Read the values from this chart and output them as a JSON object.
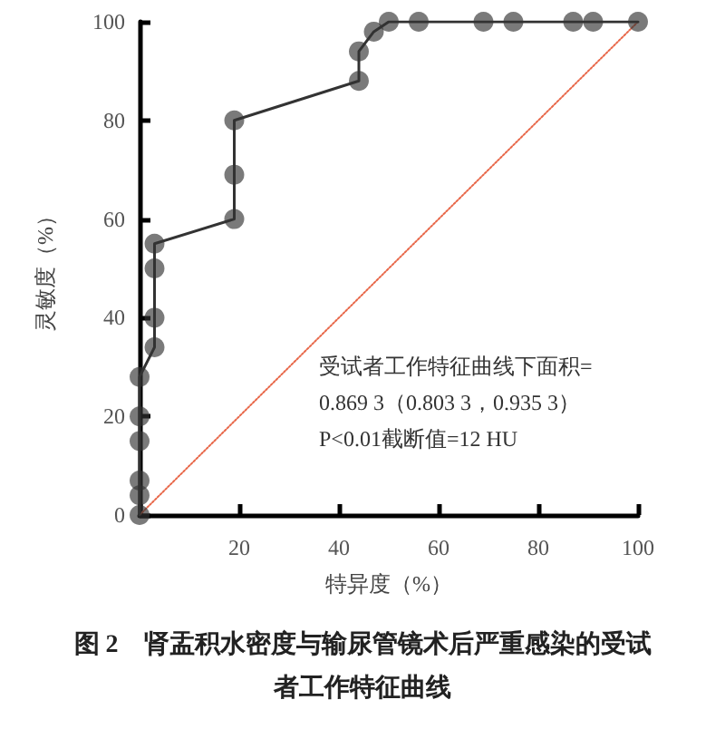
{
  "chart_data": {
    "type": "line",
    "title": "图 2　肾盂积水密度与输尿管镜术后严重感染的受试者工作特征曲线",
    "xlabel": "特异度（%）",
    "ylabel": "灵敏度（%）",
    "series": [
      {
        "color": "#333333",
        "marker": "circle",
        "x": [
          0,
          0,
          0,
          0,
          0,
          0,
          3,
          3,
          3,
          3,
          19,
          19,
          19,
          44,
          44,
          47,
          50,
          56,
          69,
          75,
          87,
          91,
          100
        ],
        "values": [
          0,
          4,
          7,
          15,
          20,
          28,
          34,
          40,
          50,
          55,
          60,
          69,
          80,
          88,
          94,
          98,
          100,
          100,
          100,
          100,
          100,
          100,
          100
        ]
      },
      {
        "type": "line",
        "color": "#e8684a",
        "line_style": "dotted",
        "marker": "none",
        "x": [
          0,
          100
        ],
        "values": [
          0,
          100
        ]
      }
    ],
    "annotations": [
      {
        "text": "受试者工作特征曲线下面积=\n0.869 3（0.803 3，0.935 3）\nP<0.01截断值=12 HU"
      }
    ],
    "xlim": [
      0,
      100
    ],
    "xticks": [
      {
        "value": 0,
        "label": null
      },
      20,
      40,
      60,
      80,
      100
    ],
    "ylim": [
      0,
      100
    ],
    "yticks": [
      0,
      20,
      40,
      60,
      80,
      100
    ],
    "grid": false
  }
}
